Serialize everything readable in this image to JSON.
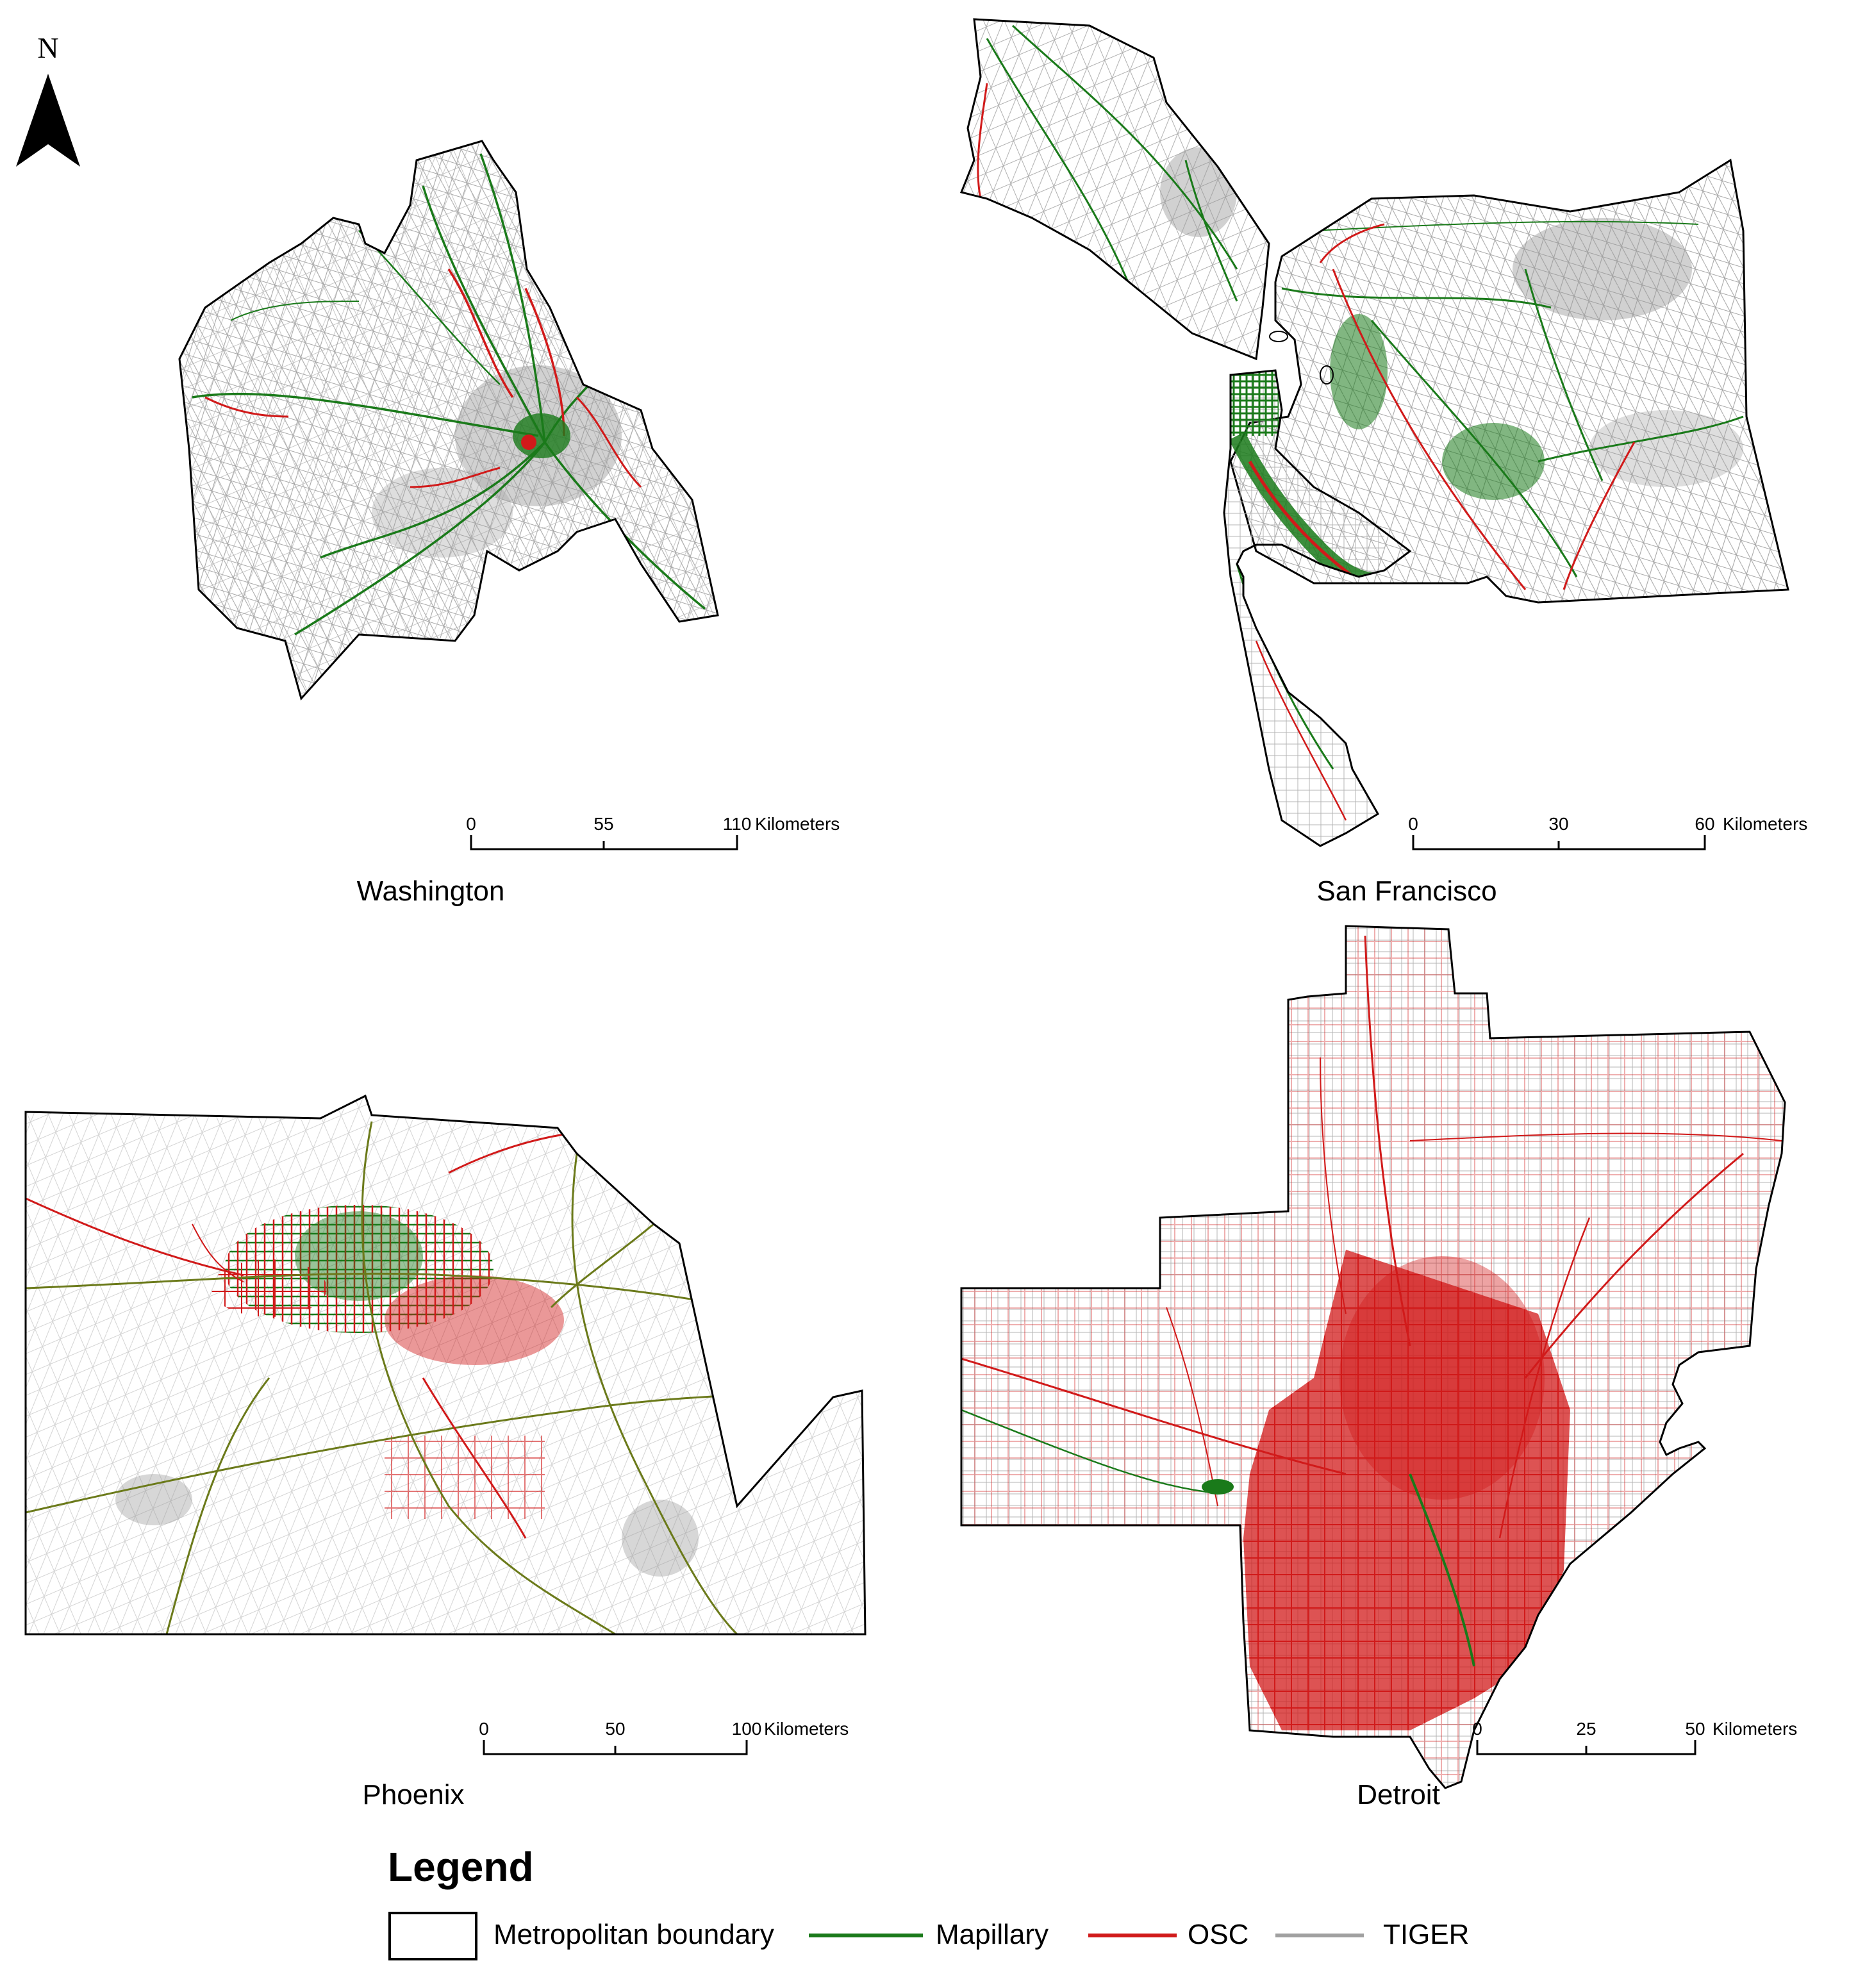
{
  "north_arrow": {
    "label": "N"
  },
  "panels": [
    {
      "id": "washington",
      "title": "Washington",
      "scale": {
        "ticks": [
          "0",
          "55",
          "110"
        ],
        "unit": "Kilometers"
      }
    },
    {
      "id": "san-francisco",
      "title": "San Francisco",
      "scale": {
        "ticks": [
          "0",
          "30",
          "60"
        ],
        "unit": "Kilometers"
      }
    },
    {
      "id": "phoenix",
      "title": "Phoenix",
      "scale": {
        "ticks": [
          "0",
          "50",
          "100"
        ],
        "unit": "Kilometers"
      }
    },
    {
      "id": "detroit",
      "title": "Detroit",
      "scale": {
        "ticks": [
          "0",
          "25",
          "50"
        ],
        "unit": "Kilometers"
      }
    }
  ],
  "legend": {
    "title": "Legend",
    "items": [
      {
        "label": "Metropolitan boundary",
        "symbol": "box",
        "color": "#000000"
      },
      {
        "label": "Mapillary",
        "symbol": "line",
        "color": "#1a7a1a"
      },
      {
        "label": "OSC",
        "symbol": "line",
        "color": "#d11a1a"
      },
      {
        "label": "TIGER",
        "symbol": "line",
        "color": "#a0a0a0"
      }
    ]
  },
  "colors": {
    "mapillary": "#1a7a1a",
    "osc": "#d11a1a",
    "tiger": "#a0a0a0",
    "boundary": "#000000"
  }
}
